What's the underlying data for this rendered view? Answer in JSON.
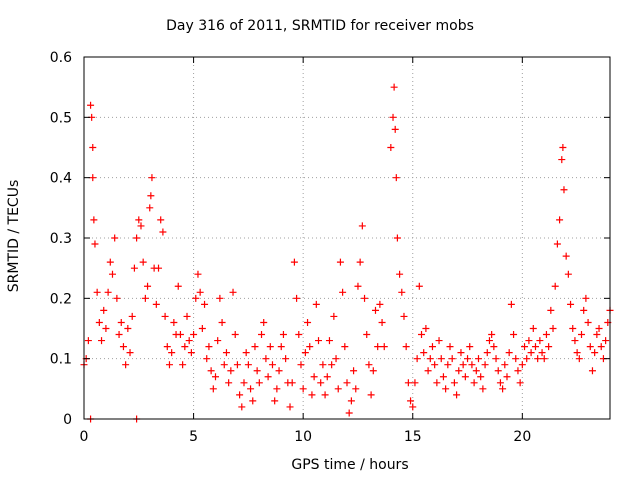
{
  "chart_data": {
    "type": "scatter",
    "title": "Day 316 of 2011, SRMTID for receiver mobs",
    "xlabel": "GPS time / hours",
    "ylabel": "SRMTID / TECUs",
    "xlim": [
      0,
      24
    ],
    "ylim": [
      0,
      0.6
    ],
    "xticks": [
      0,
      5,
      10,
      15,
      20
    ],
    "yticks": [
      0,
      0.1,
      0.2,
      0.3,
      0.4,
      0.5,
      0.6
    ],
    "grid": true,
    "marker": "+",
    "color": "#ff0000",
    "series": [
      {
        "name": "mobs",
        "points": [
          [
            0.0,
            0.09
          ],
          [
            0.1,
            0.1
          ],
          [
            0.2,
            0.13
          ],
          [
            0.3,
            0.52
          ],
          [
            0.35,
            0.5
          ],
          [
            0.4,
            0.45
          ],
          [
            0.4,
            0.4
          ],
          [
            0.45,
            0.33
          ],
          [
            0.5,
            0.29
          ],
          [
            0.6,
            0.21
          ],
          [
            0.7,
            0.16
          ],
          [
            0.8,
            0.13
          ],
          [
            0.9,
            0.18
          ],
          [
            1.0,
            0.15
          ],
          [
            1.1,
            0.21
          ],
          [
            1.2,
            0.26
          ],
          [
            1.3,
            0.24
          ],
          [
            1.4,
            0.3
          ],
          [
            1.5,
            0.2
          ],
          [
            1.6,
            0.14
          ],
          [
            1.7,
            0.16
          ],
          [
            1.8,
            0.12
          ],
          [
            1.9,
            0.09
          ],
          [
            2.0,
            0.15
          ],
          [
            2.1,
            0.11
          ],
          [
            2.2,
            0.17
          ],
          [
            2.3,
            0.25
          ],
          [
            2.4,
            0.3
          ],
          [
            2.5,
            0.33
          ],
          [
            2.6,
            0.32
          ],
          [
            2.7,
            0.26
          ],
          [
            2.8,
            0.2
          ],
          [
            2.9,
            0.22
          ],
          [
            3.0,
            0.35
          ],
          [
            3.05,
            0.37
          ],
          [
            3.1,
            0.4
          ],
          [
            3.2,
            0.25
          ],
          [
            3.3,
            0.19
          ],
          [
            3.4,
            0.25
          ],
          [
            3.5,
            0.33
          ],
          [
            3.6,
            0.31
          ],
          [
            3.7,
            0.17
          ],
          [
            3.8,
            0.12
          ],
          [
            3.9,
            0.09
          ],
          [
            4.0,
            0.11
          ],
          [
            4.1,
            0.16
          ],
          [
            4.2,
            0.14
          ],
          [
            4.3,
            0.22
          ],
          [
            4.4,
            0.14
          ],
          [
            4.5,
            0.09
          ],
          [
            4.6,
            0.12
          ],
          [
            4.7,
            0.17
          ],
          [
            4.8,
            0.13
          ],
          [
            4.9,
            0.11
          ],
          [
            5.0,
            0.14
          ],
          [
            5.1,
            0.2
          ],
          [
            5.2,
            0.24
          ],
          [
            5.3,
            0.21
          ],
          [
            5.4,
            0.15
          ],
          [
            5.5,
            0.19
          ],
          [
            5.6,
            0.1
          ],
          [
            5.7,
            0.12
          ],
          [
            5.8,
            0.08
          ],
          [
            5.9,
            0.05
          ],
          [
            6.0,
            0.07
          ],
          [
            6.1,
            0.13
          ],
          [
            6.2,
            0.2
          ],
          [
            6.3,
            0.16
          ],
          [
            6.4,
            0.09
          ],
          [
            6.5,
            0.11
          ],
          [
            6.6,
            0.06
          ],
          [
            6.7,
            0.08
          ],
          [
            6.8,
            0.21
          ],
          [
            6.9,
            0.14
          ],
          [
            7.0,
            0.09
          ],
          [
            7.1,
            0.04
          ],
          [
            7.2,
            0.02
          ],
          [
            7.3,
            0.06
          ],
          [
            7.4,
            0.11
          ],
          [
            7.5,
            0.09
          ],
          [
            7.6,
            0.05
          ],
          [
            7.7,
            0.03
          ],
          [
            7.8,
            0.12
          ],
          [
            7.9,
            0.08
          ],
          [
            8.0,
            0.06
          ],
          [
            8.1,
            0.14
          ],
          [
            8.2,
            0.16
          ],
          [
            8.3,
            0.1
          ],
          [
            8.4,
            0.07
          ],
          [
            8.5,
            0.12
          ],
          [
            8.6,
            0.09
          ],
          [
            8.7,
            0.03
          ],
          [
            8.8,
            0.05
          ],
          [
            8.9,
            0.08
          ],
          [
            9.0,
            0.12
          ],
          [
            9.1,
            0.14
          ],
          [
            9.2,
            0.1
          ],
          [
            9.3,
            0.06
          ],
          [
            9.4,
            0.02
          ],
          [
            9.5,
            0.06
          ],
          [
            9.6,
            0.26
          ],
          [
            9.7,
            0.2
          ],
          [
            9.8,
            0.14
          ],
          [
            9.9,
            0.09
          ],
          [
            10.0,
            0.05
          ],
          [
            10.1,
            0.11
          ],
          [
            10.2,
            0.16
          ],
          [
            10.3,
            0.12
          ],
          [
            10.4,
            0.04
          ],
          [
            10.5,
            0.07
          ],
          [
            10.6,
            0.19
          ],
          [
            10.7,
            0.13
          ],
          [
            10.8,
            0.06
          ],
          [
            10.9,
            0.09
          ],
          [
            11.0,
            0.04
          ],
          [
            11.1,
            0.07
          ],
          [
            11.2,
            0.13
          ],
          [
            11.3,
            0.09
          ],
          [
            11.4,
            0.17
          ],
          [
            11.5,
            0.1
          ],
          [
            11.6,
            0.05
          ],
          [
            11.7,
            0.26
          ],
          [
            11.8,
            0.21
          ],
          [
            11.9,
            0.12
          ],
          [
            12.0,
            0.06
          ],
          [
            12.1,
            0.01
          ],
          [
            12.2,
            0.03
          ],
          [
            12.3,
            0.08
          ],
          [
            12.4,
            0.05
          ],
          [
            12.5,
            0.22
          ],
          [
            12.6,
            0.26
          ],
          [
            12.7,
            0.32
          ],
          [
            12.8,
            0.2
          ],
          [
            12.9,
            0.14
          ],
          [
            13.0,
            0.09
          ],
          [
            13.1,
            0.04
          ],
          [
            13.2,
            0.08
          ],
          [
            13.3,
            0.18
          ],
          [
            13.4,
            0.12
          ],
          [
            13.5,
            0.19
          ],
          [
            13.6,
            0.16
          ],
          [
            13.7,
            0.12
          ],
          [
            14.0,
            0.45
          ],
          [
            14.1,
            0.5
          ],
          [
            14.15,
            0.55
          ],
          [
            14.2,
            0.48
          ],
          [
            14.25,
            0.4
          ],
          [
            14.3,
            0.3
          ],
          [
            14.4,
            0.24
          ],
          [
            14.5,
            0.21
          ],
          [
            14.6,
            0.17
          ],
          [
            14.7,
            0.12
          ],
          [
            14.8,
            0.06
          ],
          [
            14.9,
            0.03
          ],
          [
            15.0,
            0.02
          ],
          [
            15.1,
            0.06
          ],
          [
            15.2,
            0.1
          ],
          [
            15.3,
            0.22
          ],
          [
            15.4,
            0.14
          ],
          [
            15.5,
            0.11
          ],
          [
            15.6,
            0.15
          ],
          [
            15.7,
            0.08
          ],
          [
            15.8,
            0.1
          ],
          [
            15.9,
            0.12
          ],
          [
            16.0,
            0.09
          ],
          [
            16.1,
            0.06
          ],
          [
            16.2,
            0.13
          ],
          [
            16.3,
            0.1
          ],
          [
            16.4,
            0.07
          ],
          [
            16.5,
            0.05
          ],
          [
            16.6,
            0.09
          ],
          [
            16.7,
            0.12
          ],
          [
            16.8,
            0.1
          ],
          [
            16.9,
            0.06
          ],
          [
            17.0,
            0.04
          ],
          [
            17.1,
            0.08
          ],
          [
            17.2,
            0.11
          ],
          [
            17.3,
            0.09
          ],
          [
            17.4,
            0.07
          ],
          [
            17.5,
            0.1
          ],
          [
            17.6,
            0.12
          ],
          [
            17.7,
            0.09
          ],
          [
            17.8,
            0.06
          ],
          [
            17.9,
            0.08
          ],
          [
            18.0,
            0.1
          ],
          [
            18.1,
            0.07
          ],
          [
            18.2,
            0.05
          ],
          [
            18.3,
            0.09
          ],
          [
            18.4,
            0.11
          ],
          [
            18.5,
            0.13
          ],
          [
            18.6,
            0.14
          ],
          [
            18.7,
            0.12
          ],
          [
            18.8,
            0.1
          ],
          [
            18.9,
            0.08
          ],
          [
            19.0,
            0.06
          ],
          [
            19.1,
            0.05
          ],
          [
            19.2,
            0.09
          ],
          [
            19.3,
            0.07
          ],
          [
            19.4,
            0.11
          ],
          [
            19.5,
            0.19
          ],
          [
            19.6,
            0.14
          ],
          [
            19.7,
            0.1
          ],
          [
            19.8,
            0.08
          ],
          [
            19.9,
            0.06
          ],
          [
            20.0,
            0.09
          ],
          [
            20.1,
            0.12
          ],
          [
            20.2,
            0.1
          ],
          [
            20.3,
            0.13
          ],
          [
            20.4,
            0.11
          ],
          [
            20.5,
            0.15
          ],
          [
            20.6,
            0.12
          ],
          [
            20.7,
            0.1
          ],
          [
            20.8,
            0.13
          ],
          [
            20.9,
            0.11
          ],
          [
            21.0,
            0.1
          ],
          [
            21.1,
            0.14
          ],
          [
            21.2,
            0.12
          ],
          [
            21.3,
            0.18
          ],
          [
            21.4,
            0.15
          ],
          [
            21.5,
            0.22
          ],
          [
            21.6,
            0.29
          ],
          [
            21.7,
            0.33
          ],
          [
            21.8,
            0.43
          ],
          [
            21.85,
            0.45
          ],
          [
            21.9,
            0.38
          ],
          [
            22.0,
            0.27
          ],
          [
            22.1,
            0.24
          ],
          [
            22.2,
            0.19
          ],
          [
            22.3,
            0.15
          ],
          [
            22.4,
            0.13
          ],
          [
            22.5,
            0.11
          ],
          [
            22.6,
            0.1
          ],
          [
            22.7,
            0.14
          ],
          [
            22.8,
            0.18
          ],
          [
            22.9,
            0.2
          ],
          [
            23.0,
            0.16
          ],
          [
            23.1,
            0.12
          ],
          [
            23.2,
            0.08
          ],
          [
            23.3,
            0.11
          ],
          [
            23.4,
            0.14
          ],
          [
            23.5,
            0.15
          ],
          [
            23.6,
            0.12
          ],
          [
            23.7,
            0.1
          ],
          [
            23.8,
            0.13
          ],
          [
            23.9,
            0.16
          ],
          [
            24.0,
            0.18
          ],
          [
            0.3,
            0.0
          ],
          [
            2.4,
            0.0
          ]
        ]
      }
    ]
  }
}
